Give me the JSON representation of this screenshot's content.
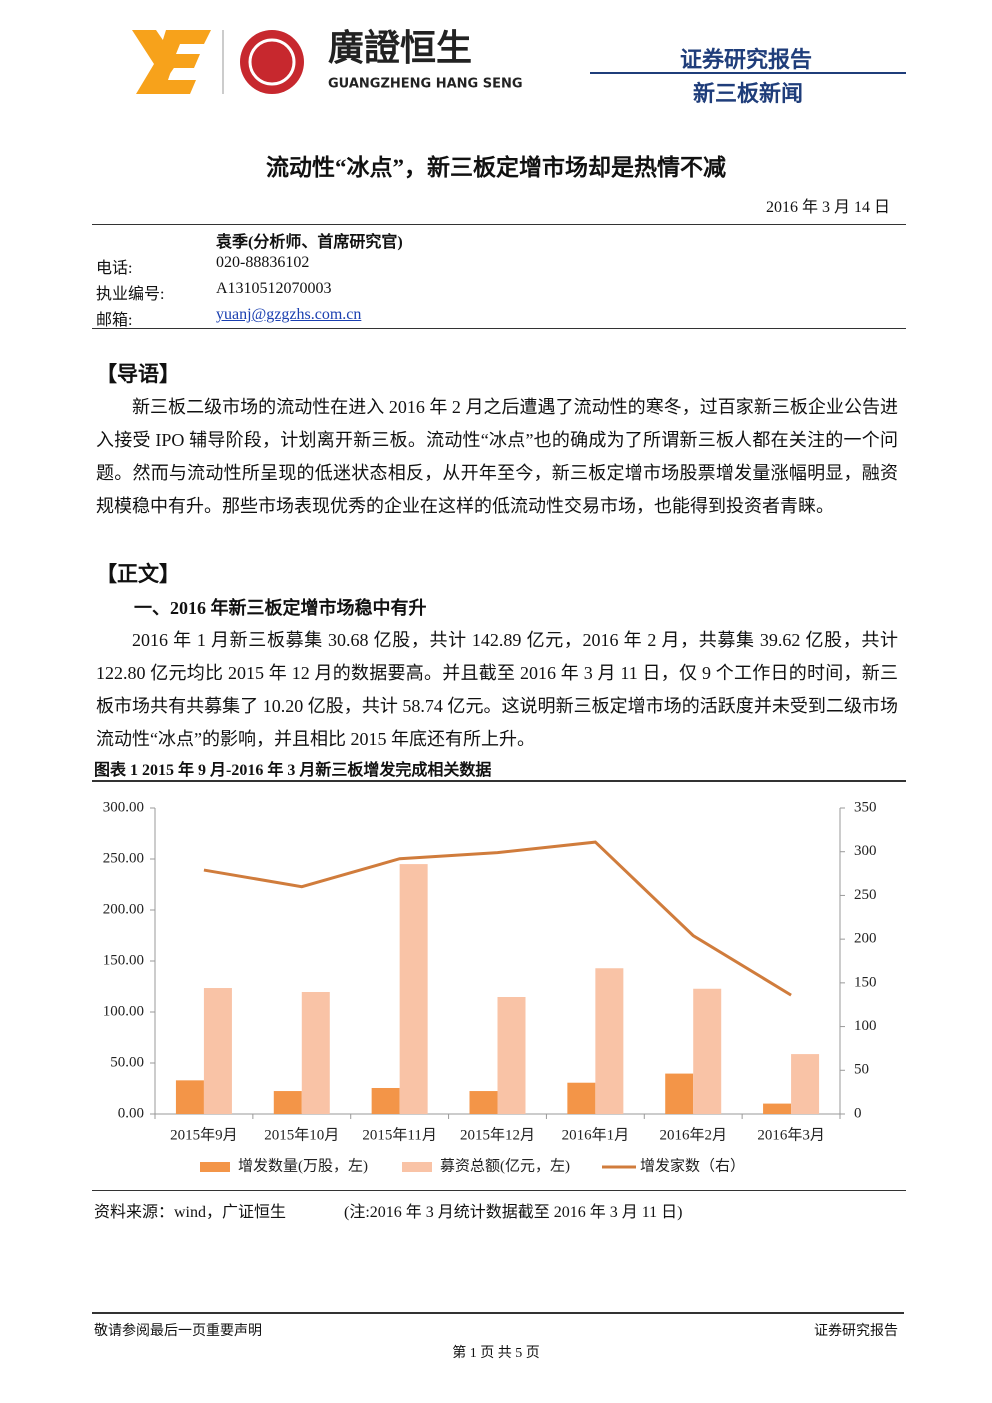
{
  "header": {
    "logo_name": "廣證恒生",
    "logo_name_en": "GUANGZHENG HANG SENG",
    "report_type": "证券研究报告",
    "column": "新三板新闻"
  },
  "title": "流动性“冰点”，新三板定增市场却是热情不减",
  "date": "2016 年 3 月 14 日",
  "author": {
    "name": "袁季(分析师、首席研究官)",
    "rows": [
      [
        "电话:",
        "020-88836102"
      ],
      [
        "执业编号:",
        "A1310512070003"
      ],
      [
        "邮箱:",
        "yuanj@gzgzhs.com.cn"
      ]
    ]
  },
  "intro": {
    "heading": "【导语】",
    "paragraph": "新三板二级市场的流动性在进入 2016 年 2 月之后遭遇了流动性的寒冬，过百家新三板企业公告进入接受 IPO 辅导阶段，计划离开新三板。流动性“冰点”也的确成为了所谓新三板人都在关注的一个问题。然而与流动性所呈现的低迷状态相反，从开年至今，新三板定增市场股票增发量涨幅明显，融资规模稳中有升。那些市场表现优秀的企业在这样的低流动性交易市场，也能得到投资者青睐。"
  },
  "body": {
    "heading": "【正文】",
    "subheading": "一、2016 年新三板定增市场稳中有升",
    "paragraph": "2016 年 1 月新三板募集 30.68 亿股，共计 142.89 亿元，2016 年 2 月，共募集 39.62 亿股，共计 122.80 亿元均比 2015 年 12 月的数据要高。并且截至 2016 年 3 月 11 日，仅 9 个工作日的时间，新三板市场共有共募集了 10.20 亿股，共计 58.74 亿元。这说明新三板定增市场的活跃度并未受到二级市场流动性“冰点”的影响，并且相比 2015 年底还有所上升。"
  },
  "figure_caption": "图表 1 2015 年 9 月-2016 年 3 月新三板增发完成相关数据",
  "chart_data": {
    "type": "bar-line",
    "categories": [
      "2015年9月",
      "2015年10月",
      "2015年11月",
      "2015年12月",
      "2016年1月",
      "2016年2月",
      "2016年3月"
    ],
    "series": [
      {
        "name": "增发数量(万股，左)",
        "color": "#f39548",
        "type": "bar",
        "values": [
          33,
          22.5,
          25.5,
          22.5,
          30.68,
          39.62,
          10.2
        ]
      },
      {
        "name": "募资总额(亿元，左)",
        "color": "#f9c3a6",
        "type": "bar",
        "values": [
          123.5,
          119.6,
          245,
          114.7,
          142.89,
          122.8,
          58.74
        ]
      },
      {
        "name": "增发家数（右）",
        "color": "#d07c3c",
        "type": "line",
        "axis": "y2",
        "values": [
          279,
          260,
          292,
          299,
          311,
          204,
          136
        ]
      }
    ],
    "ylim": [
      0,
      300
    ],
    "yticks": [
      {
        "value": 0,
        "label": "0.00"
      },
      {
        "value": 50,
        "label": "50.00"
      },
      {
        "value": 100,
        "label": "100.00"
      },
      {
        "value": 150,
        "label": "150.00"
      },
      {
        "value": 200,
        "label": "200.00"
      },
      {
        "value": 250,
        "label": "250.00"
      },
      {
        "value": 300,
        "label": "300.00"
      }
    ],
    "y2lim": [
      0,
      350
    ],
    "y2ticks": [
      0,
      50,
      100,
      150,
      200,
      250,
      300,
      350
    ],
    "grid": false,
    "legend": "bottom"
  },
  "source": "资料来源：wind，广证恒生",
  "note": "(注:2016 年 3 月统计数据截至 2016 年 3 月 11 日)",
  "footer": {
    "disclaimer": "敬请参阅最后一页重要声明",
    "report_type": "证券研究报告",
    "page": "第 1 页 共 5 页"
  }
}
